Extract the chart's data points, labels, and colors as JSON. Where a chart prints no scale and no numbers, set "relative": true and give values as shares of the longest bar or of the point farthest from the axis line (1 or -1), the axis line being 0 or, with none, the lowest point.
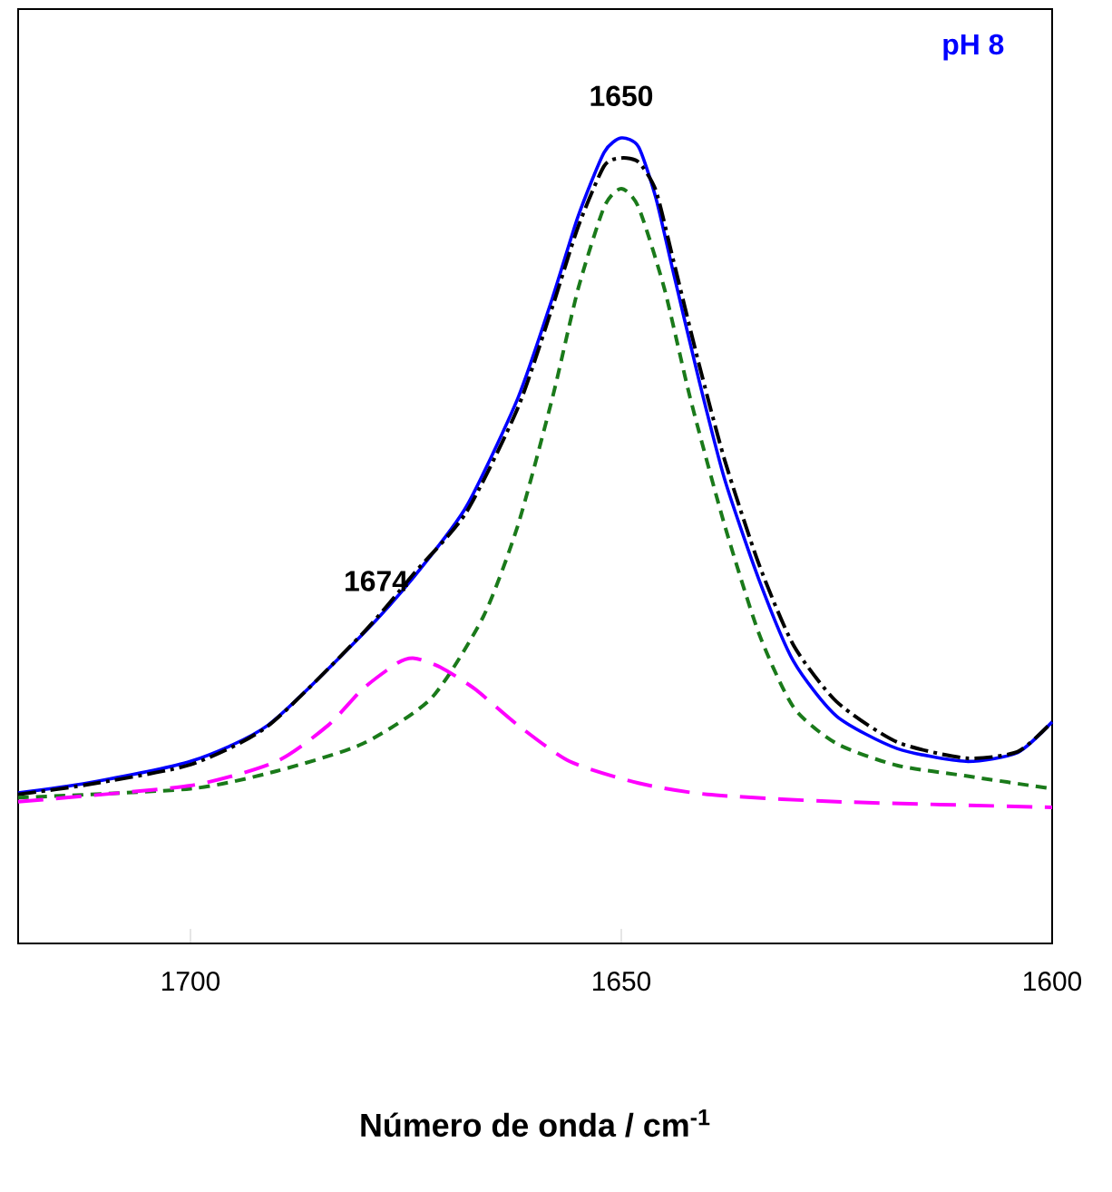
{
  "chart_data": {
    "type": "line",
    "relative": true,
    "xlabel": "Número de onda / cm$^{-1}$",
    "xlim": [
      1720,
      1600
    ],
    "xticks": [
      1700,
      1650,
      1600
    ],
    "grid": false,
    "annotations": [
      {
        "text": "1650",
        "x": 1650,
        "y": 1.0
      },
      {
        "text": "1674",
        "x": 1674,
        "y": 0.45
      }
    ],
    "series": [
      {
        "name": "pH 8",
        "color": "#0000ff",
        "line_style": "solid",
        "x": [
          1720,
          1712,
          1700,
          1691,
          1680,
          1674,
          1668,
          1662,
          1658,
          1655,
          1652,
          1650,
          1648,
          1646,
          1644,
          1641,
          1638,
          1634,
          1630,
          1625,
          1618,
          1610,
          1604,
          1600
        ],
        "values": [
          0.187,
          0.199,
          0.226,
          0.271,
          0.384,
          0.456,
          0.542,
          0.677,
          0.801,
          0.903,
          0.982,
          1.0,
          0.989,
          0.926,
          0.835,
          0.7,
          0.576,
          0.451,
          0.35,
          0.282,
          0.242,
          0.226,
          0.237,
          0.275
        ]
      },
      {
        "color": "#000000",
        "line_style": "dashdot",
        "x": [
          1720,
          1712,
          1700,
          1691,
          1680,
          1674,
          1668,
          1662,
          1658,
          1655,
          1652,
          1650,
          1648,
          1646,
          1644,
          1641,
          1638,
          1634,
          1630,
          1625,
          1618,
          1610,
          1604,
          1600
        ],
        "values": [
          0.185,
          0.197,
          0.222,
          0.27,
          0.385,
          0.46,
          0.535,
          0.665,
          0.79,
          0.89,
          0.965,
          0.975,
          0.97,
          0.935,
          0.85,
          0.72,
          0.6,
          0.47,
          0.37,
          0.3,
          0.25,
          0.23,
          0.238,
          0.275
        ]
      },
      {
        "color": "#1a7a1a",
        "line_style": "dashed",
        "x": [
          1720,
          1700,
          1690,
          1680,
          1672,
          1666,
          1662,
          1658,
          1655,
          1652,
          1650,
          1648,
          1645,
          1642,
          1638,
          1634,
          1630,
          1625,
          1618,
          1610,
          1600
        ],
        "values": [
          0.181,
          0.192,
          0.214,
          0.248,
          0.305,
          0.406,
          0.519,
          0.677,
          0.813,
          0.914,
          0.937,
          0.914,
          0.813,
          0.677,
          0.519,
          0.384,
          0.293,
          0.248,
          0.221,
          0.208,
          0.192
        ]
      },
      {
        "color": "#ff00ff",
        "line_style": "longdashed",
        "x": [
          1720,
          1700,
          1690,
          1684,
          1680,
          1676,
          1674,
          1671,
          1667,
          1662,
          1656,
          1648,
          1640,
          1625,
          1600
        ],
        "values": [
          0.176,
          0.196,
          0.226,
          0.271,
          0.316,
          0.348,
          0.354,
          0.343,
          0.316,
          0.271,
          0.226,
          0.199,
          0.185,
          0.176,
          0.169
        ]
      }
    ]
  }
}
